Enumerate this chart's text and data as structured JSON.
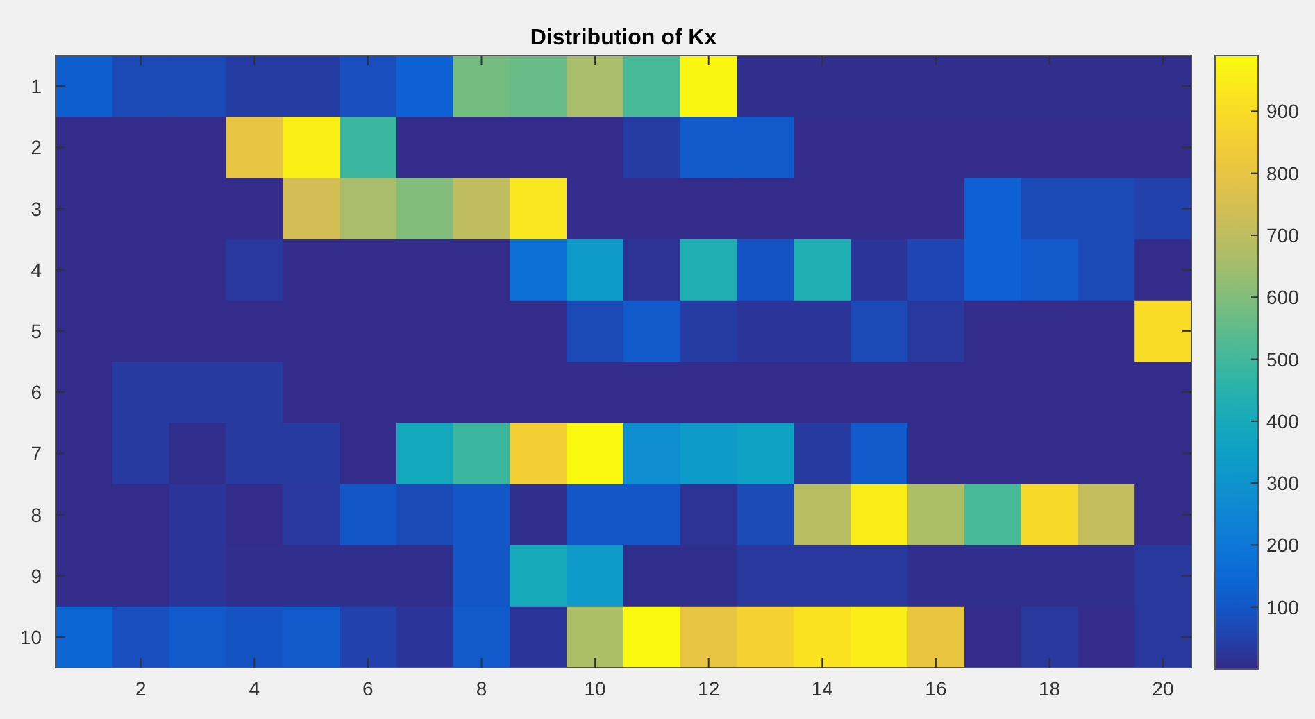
{
  "chart_data": {
    "type": "heatmap",
    "title": "Distribution of Kx",
    "categories": [
      null,
      "2",
      null,
      "4",
      null,
      "6",
      null,
      "8",
      null,
      "10",
      null,
      "12",
      null,
      "14",
      null,
      "16",
      null,
      "18",
      null,
      "20"
    ],
    "y_categories": [
      "1",
      "2",
      "3",
      "4",
      "5",
      "6",
      "7",
      "8",
      "9",
      "10"
    ],
    "cells": [
      [
        120,
        70,
        70,
        40,
        40,
        80,
        130,
        580,
        560,
        660,
        510,
        980,
        10,
        10,
        10,
        10,
        10,
        10,
        10,
        10
      ],
      [
        5,
        5,
        5,
        800,
        960,
        490,
        5,
        5,
        5,
        5,
        40,
        110,
        110,
        5,
        5,
        5,
        5,
        5,
        5,
        5
      ],
      [
        5,
        5,
        5,
        5,
        740,
        660,
        600,
        700,
        930,
        5,
        5,
        5,
        5,
        5,
        5,
        5,
        130,
        70,
        70,
        50
      ],
      [
        5,
        5,
        5,
        30,
        5,
        5,
        5,
        5,
        170,
        330,
        20,
        430,
        90,
        430,
        25,
        60,
        130,
        110,
        70,
        5
      ],
      [
        5,
        5,
        5,
        5,
        5,
        5,
        5,
        5,
        5,
        70,
        110,
        40,
        25,
        25,
        70,
        30,
        5,
        5,
        5,
        900
      ],
      [
        5,
        35,
        35,
        35,
        5,
        5,
        5,
        5,
        5,
        5,
        5,
        5,
        5,
        5,
        5,
        5,
        5,
        5,
        5,
        5
      ],
      [
        5,
        35,
        10,
        35,
        35,
        5,
        390,
        490,
        850,
        985,
        280,
        330,
        360,
        35,
        110,
        5,
        5,
        5,
        5,
        5
      ],
      [
        5,
        5,
        25,
        5,
        30,
        100,
        70,
        100,
        10,
        100,
        100,
        20,
        70,
        690,
        950,
        670,
        510,
        890,
        710,
        5
      ],
      [
        5,
        5,
        25,
        10,
        10,
        10,
        10,
        100,
        400,
        330,
        10,
        10,
        30,
        30,
        30,
        10,
        10,
        10,
        10,
        30
      ],
      [
        140,
        80,
        110,
        90,
        110,
        50,
        25,
        110,
        25,
        670,
        985,
        800,
        860,
        920,
        950,
        810,
        5,
        30,
        5,
        30
      ]
    ],
    "clim": [
      0,
      990
    ],
    "cticks": [
      100,
      200,
      300,
      400,
      500,
      600,
      700,
      800,
      900
    ]
  }
}
